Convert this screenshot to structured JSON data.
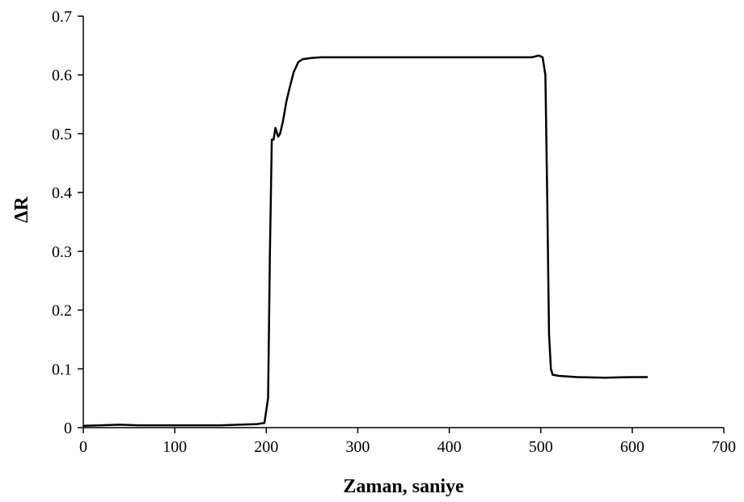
{
  "chart_data": {
    "type": "line",
    "title": "",
    "xlabel": "Zaman,  saniye",
    "ylabel": "ΔR",
    "xlim": [
      0,
      700
    ],
    "ylim": [
      0,
      0.7
    ],
    "xticks": [
      0,
      100,
      200,
      300,
      400,
      500,
      600,
      700
    ],
    "yticks": [
      0,
      0.1,
      0.2,
      0.3,
      0.4,
      0.5,
      0.6,
      0.7
    ],
    "xtick_labels": [
      "0",
      "100",
      "200",
      "300",
      "400",
      "500",
      "600",
      "700"
    ],
    "ytick_labels": [
      "0",
      "0.1",
      "0.2",
      "0.3",
      "0.4",
      "0.5",
      "0.6",
      "0.7"
    ],
    "grid": false,
    "legend": "none",
    "line_color": "#000000",
    "series": [
      {
        "x": [
          0,
          20,
          40,
          60,
          100,
          150,
          170,
          190,
          198,
          202,
          204,
          206,
          208,
          210,
          213,
          215,
          218,
          222,
          225,
          230,
          235,
          240,
          250,
          260,
          280,
          300,
          350,
          400,
          450,
          490,
          498,
          502,
          505,
          507,
          509,
          511,
          513,
          520,
          540,
          570,
          600,
          617
        ],
        "y": [
          0.003,
          0.004,
          0.005,
          0.004,
          0.004,
          0.004,
          0.005,
          0.006,
          0.008,
          0.05,
          0.3,
          0.49,
          0.49,
          0.51,
          0.495,
          0.5,
          0.52,
          0.555,
          0.575,
          0.605,
          0.622,
          0.627,
          0.629,
          0.63,
          0.63,
          0.63,
          0.63,
          0.63,
          0.63,
          0.63,
          0.633,
          0.63,
          0.6,
          0.4,
          0.16,
          0.1,
          0.09,
          0.088,
          0.086,
          0.085,
          0.086,
          0.086
        ]
      }
    ]
  }
}
